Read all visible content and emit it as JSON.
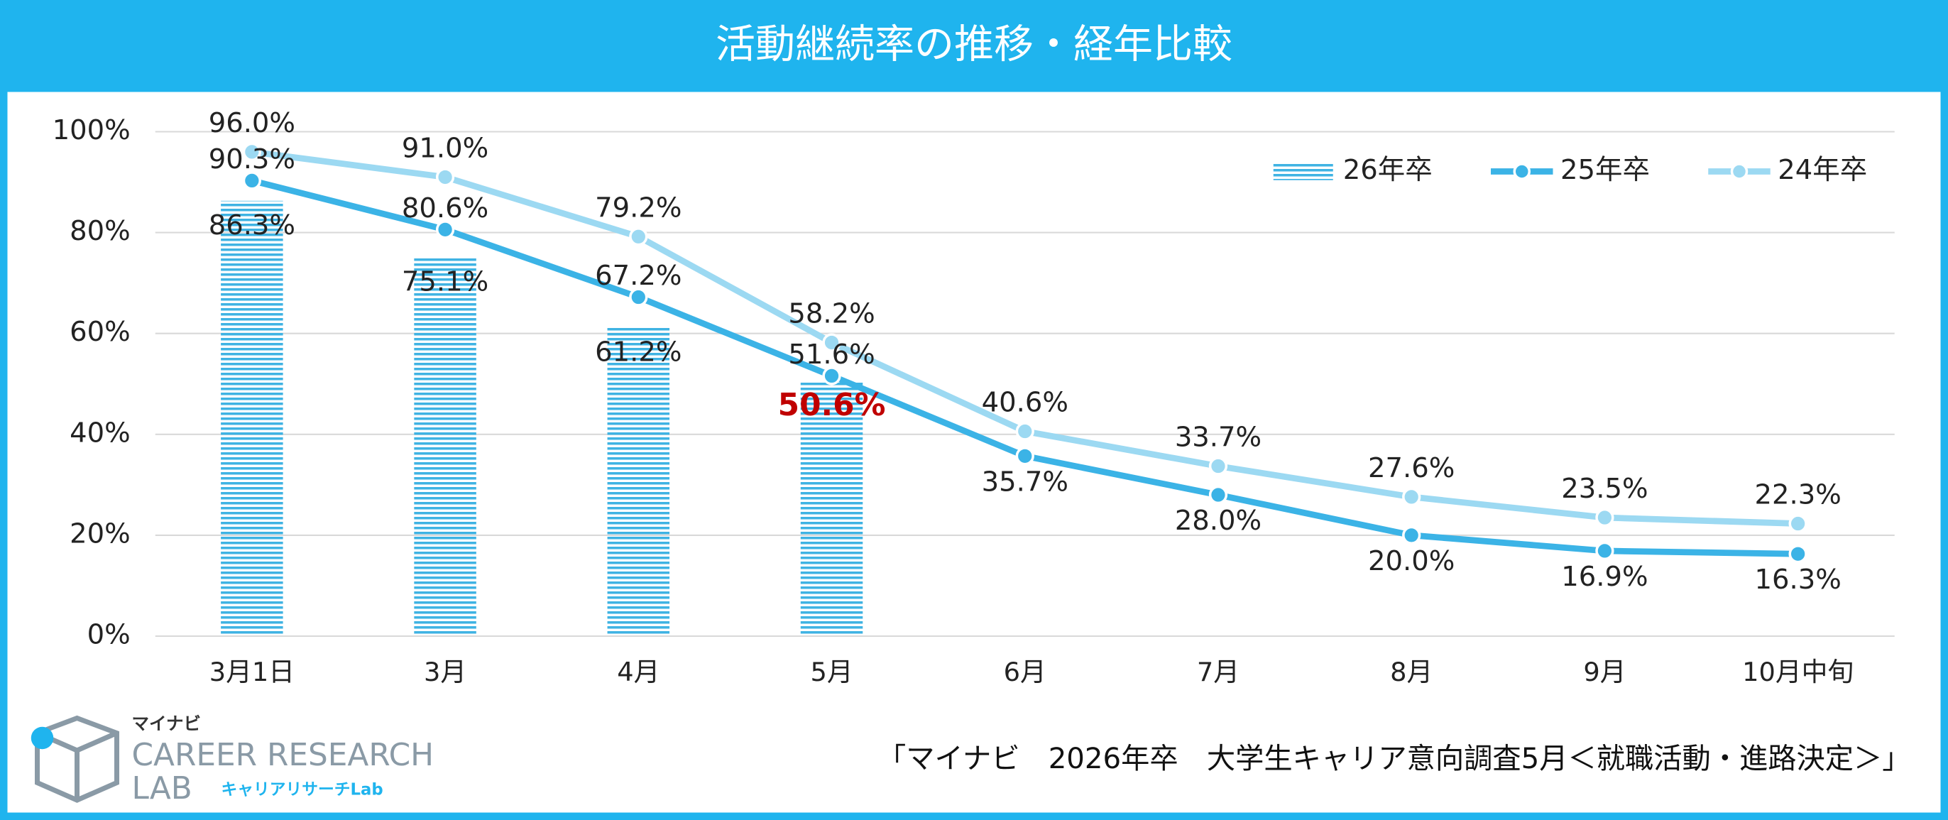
{
  "chart_data": {
    "type": "line",
    "title": "活動継続率の推移・経年比較",
    "categories": [
      "3月1日",
      "3月",
      "4月",
      "5月",
      "6月",
      "7月",
      "8月",
      "9月",
      "10月中旬"
    ],
    "series": [
      {
        "name": "26年卒",
        "type": "bar",
        "color": "#3fb3e3",
        "values": [
          86.3,
          75.1,
          61.2,
          50.6,
          null,
          null,
          null,
          null,
          null
        ],
        "value_labels": [
          "86.3%",
          "75.1%",
          "61.2%",
          "50.6%",
          null,
          null,
          null,
          null,
          null
        ]
      },
      {
        "name": "25年卒",
        "type": "line",
        "color": "#3bb3e6",
        "values": [
          90.3,
          80.6,
          67.2,
          51.6,
          35.7,
          28.0,
          20.0,
          16.9,
          16.3
        ],
        "value_labels": [
          "90.3%",
          "80.6%",
          "67.2%",
          "51.6%",
          "35.7%",
          "28.0%",
          "20.0%",
          "16.9%",
          "16.3%"
        ]
      },
      {
        "name": "24年卒",
        "type": "line",
        "color": "#9cd9f2",
        "values": [
          96.0,
          91.0,
          79.2,
          58.2,
          40.6,
          33.7,
          27.6,
          23.5,
          22.3
        ],
        "value_labels": [
          "96.0%",
          "91.0%",
          "79.2%",
          "58.2%",
          "40.6%",
          "33.7%",
          "27.6%",
          "23.5%",
          "22.3%"
        ]
      }
    ],
    "ylim": [
      0,
      100
    ],
    "yticks": [
      {
        "value": 0,
        "label": "0%"
      },
      {
        "value": 20,
        "label": "20%"
      },
      {
        "value": 40,
        "label": "40%"
      },
      {
        "value": 60,
        "label": "60%"
      },
      {
        "value": 80,
        "label": "80%"
      },
      {
        "value": 100,
        "label": "100%"
      }
    ],
    "grid": true,
    "legend": "top-right",
    "highlight_color": "#c00000",
    "source": "「マイナビ　2026年卒　大学生キャリア意向調査5月＜就職活動・進路決定＞」"
  },
  "logo": {
    "brand": "マイナビ",
    "line1": "CAREER RESEARCH",
    "line2": "LAB",
    "sub": "キャリアリサーチLab"
  }
}
